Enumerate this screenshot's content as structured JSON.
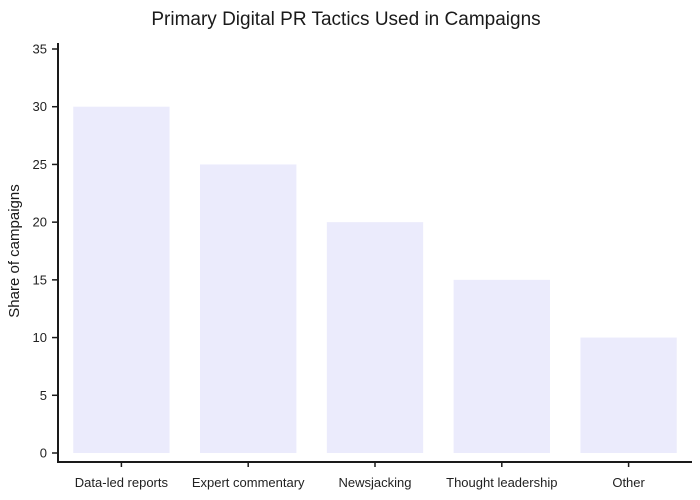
{
  "chart_data": {
    "type": "bar",
    "title": "Primary Digital PR Tactics Used in Campaigns",
    "xlabel": "",
    "ylabel": "Share of campaigns",
    "categories": [
      "Data-led reports",
      "Expert commentary",
      "Newsjacking",
      "Thought leadership",
      "Other"
    ],
    "values": [
      30,
      25,
      20,
      15,
      10
    ],
    "ylim": [
      0,
      35
    ],
    "yticks": [
      0,
      5,
      10,
      15,
      20,
      25,
      30,
      35
    ],
    "grid": false,
    "legend": "none",
    "bar_color": "#ebebfc",
    "axis_color": "#1a1a1a"
  }
}
